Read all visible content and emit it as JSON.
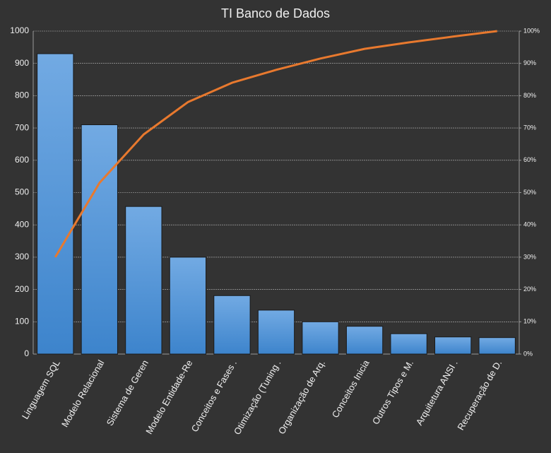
{
  "chart_data": {
    "type": "pareto",
    "title": "TI Banco de Dados",
    "categories": [
      "Linguagem SQL",
      "Modelo Relacional",
      "Sistema de Geren",
      "Modelo Entidade-Re",
      "Conceitos e Fases .",
      "Otimização (Tuning .",
      "Organização de Arq.",
      "Conceitos Inicia",
      "Outros Tipos e M.",
      "Arquitetura  ANSI .",
      "Recuperação de D."
    ],
    "series": [
      {
        "type": "bar",
        "color": "#4a90d9",
        "values": [
          930,
          710,
          457,
          300,
          181,
          136,
          100,
          86,
          63,
          53,
          51
        ]
      },
      {
        "type": "line",
        "axis": "y2",
        "color": "#e8792e",
        "values": [
          30,
          53,
          68,
          78,
          84,
          88,
          91.5,
          94.5,
          96.5,
          98.3,
          100
        ]
      }
    ],
    "ylim": [
      0,
      1000
    ],
    "yticks": [
      0,
      100,
      200,
      300,
      400,
      500,
      600,
      700,
      800,
      900,
      1000
    ],
    "y2lim": [
      0,
      100
    ],
    "y2ticks": [
      {
        "value": 0,
        "label": "0%"
      },
      {
        "value": 10,
        "label": "10%"
      },
      {
        "value": 20,
        "label": "20%"
      },
      {
        "value": 30,
        "label": "30%"
      },
      {
        "value": 40,
        "label": "40%"
      },
      {
        "value": 50,
        "label": "50%"
      },
      {
        "value": 60,
        "label": "60%"
      },
      {
        "value": 70,
        "label": "70%"
      },
      {
        "value": 80,
        "label": "80%"
      },
      {
        "value": 90,
        "label": "90%"
      },
      {
        "value": 100,
        "label": "100%"
      }
    ],
    "grid": true
  }
}
